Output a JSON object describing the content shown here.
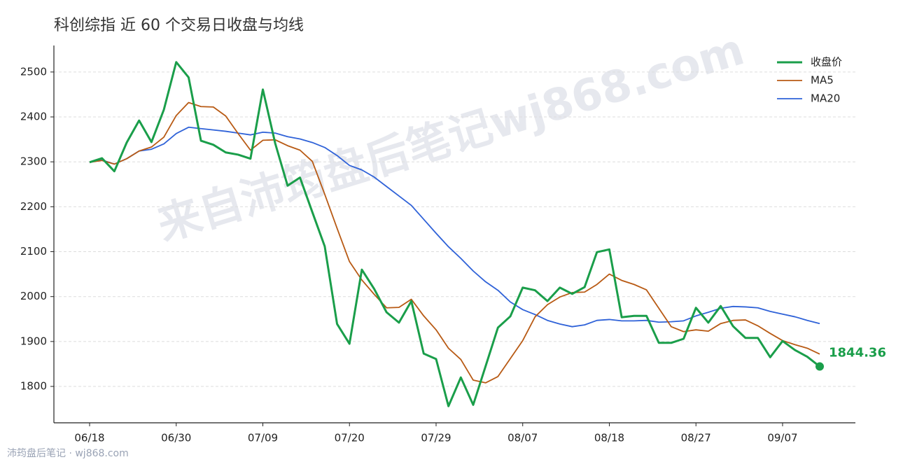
{
  "chart_data": {
    "type": "line",
    "title": "科创综指 近 60 个交易日收盘与均线",
    "categories": [
      "06/18",
      null,
      null,
      null,
      null,
      null,
      null,
      "06/30",
      null,
      null,
      null,
      null,
      null,
      null,
      "07/09",
      null,
      null,
      null,
      null,
      null,
      null,
      "07/20",
      null,
      null,
      null,
      null,
      null,
      null,
      "07/29",
      null,
      null,
      null,
      null,
      null,
      null,
      "08/07",
      null,
      null,
      null,
      null,
      null,
      null,
      "08/18",
      null,
      null,
      null,
      null,
      null,
      null,
      "08/27",
      null,
      null,
      null,
      null,
      null,
      null,
      "09/07",
      null,
      null,
      null
    ],
    "series": [
      {
        "name": "收盘价",
        "color": "#1a9e4a",
        "values": [
          2299,
          2308,
          2279,
          2343,
          2392,
          2344,
          2416,
          2522,
          2488,
          2347,
          2338,
          2321,
          2316,
          2307,
          2461,
          2341,
          2247,
          2265,
          2188,
          2112,
          1939,
          1895,
          2060,
          2017,
          1965,
          1942,
          1990,
          1873,
          1861,
          1756,
          1820,
          1759,
          1845,
          1931,
          1956,
          2020,
          2014,
          1990,
          2020,
          2006,
          2021,
          2099,
          2105,
          1954,
          1957,
          1957,
          1897,
          1897,
          1906,
          1975,
          1942,
          1979,
          1934,
          1908,
          1908,
          1865,
          1901,
          1881,
          1866,
          1844.36
        ]
      },
      {
        "name": "MA5",
        "color": "#b85a14",
        "values": [
          2299,
          2303,
          2295,
          2307,
          2324,
          2333,
          2355,
          2403,
          2432,
          2423,
          2422,
          2402,
          2363,
          2326,
          2348,
          2349,
          2336,
          2326,
          2301,
          2228,
          2152,
          2078,
          2037,
          2005,
          1975,
          1976,
          1994,
          1957,
          1926,
          1885,
          1860,
          1814,
          1808,
          1822,
          1862,
          1902,
          1955,
          1982,
          1999,
          2009,
          2010,
          2027,
          2050,
          2036,
          2027,
          2015,
          1974,
          1933,
          1922,
          1926,
          1923,
          1940,
          1947,
          1948,
          1935,
          1918,
          1902,
          1893,
          1885,
          1872
        ]
      },
      {
        "name": "MA20",
        "color": "#2f62d8",
        "values": [
          2299,
          2304,
          2295,
          2307,
          2324,
          2328,
          2340,
          2363,
          2377,
          2374,
          2371,
          2368,
          2364,
          2360,
          2366,
          2364,
          2356,
          2351,
          2343,
          2332,
          2314,
          2292,
          2282,
          2266,
          2245,
          2224,
          2203,
          2172,
          2141,
          2111,
          2085,
          2057,
          2033,
          2014,
          1988,
          1971,
          1960,
          1947,
          1939,
          1933,
          1937,
          1947,
          1949,
          1946,
          1946,
          1947,
          1943,
          1944,
          1946,
          1957,
          1965,
          1974,
          1978,
          1977,
          1975,
          1967,
          1961,
          1955,
          1947,
          1940
        ]
      }
    ],
    "ylim": [
      1719,
      2559
    ],
    "yticks": [
      1800,
      1900,
      2000,
      2100,
      2200,
      2300,
      2400,
      2500
    ],
    "grid": true,
    "legend": "upper right",
    "watermark": "来自沛筠盘后笔记wj868.com",
    "footer": "沛筠盘后笔记 · wj868.com"
  }
}
